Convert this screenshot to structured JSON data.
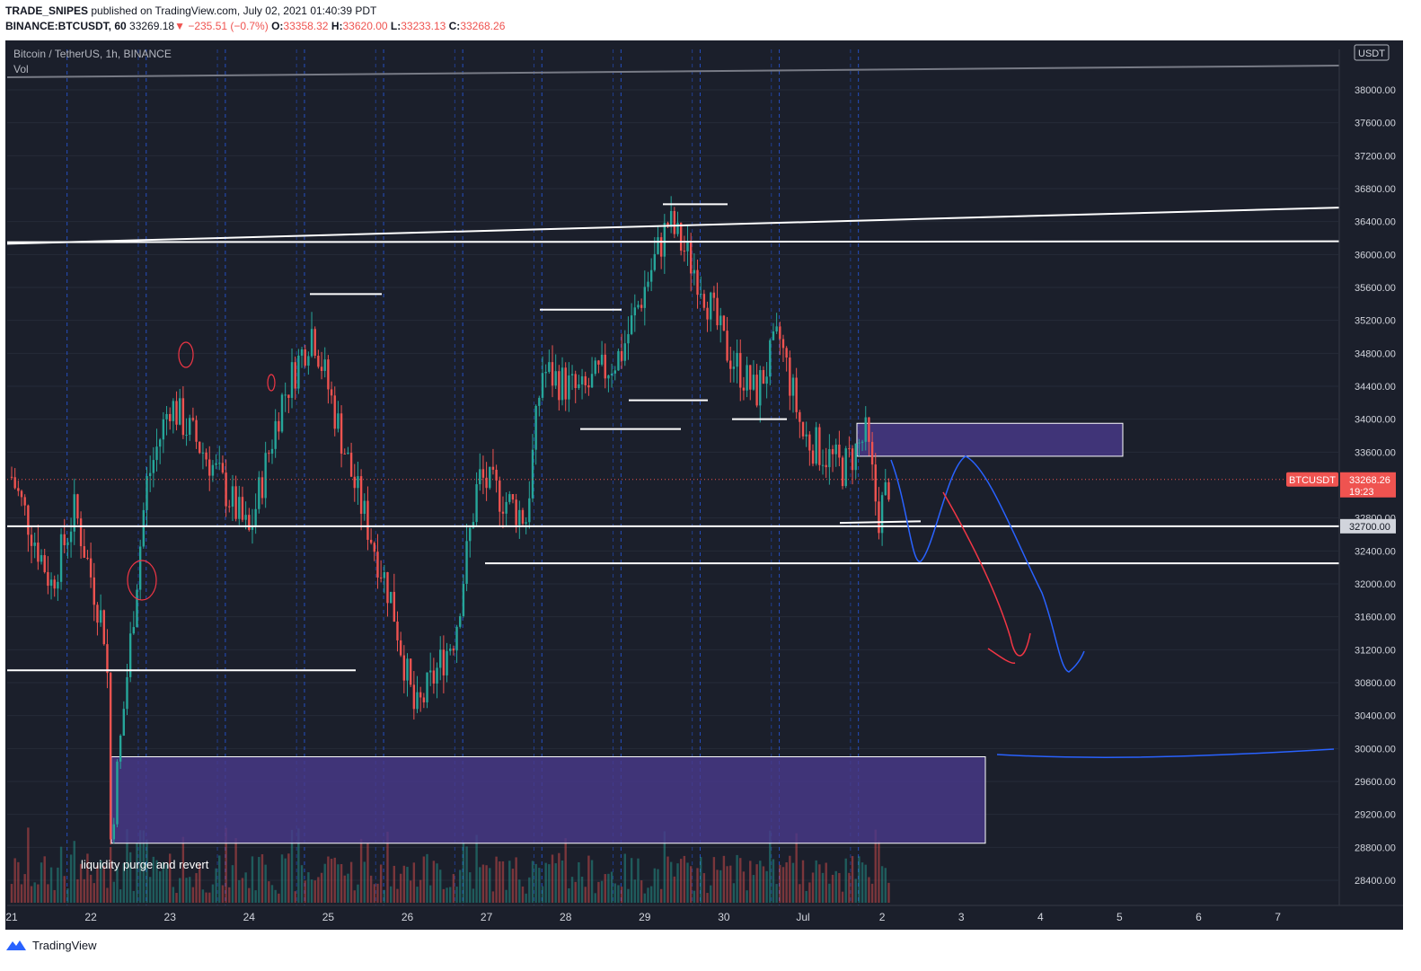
{
  "header": {
    "publisher": "TRADE_SNIPES",
    "published_text": "published on TradingView.com, July 02, 2021 01:40:39 PDT",
    "symbol": "BINANCE:BTCUSDT, 60",
    "last": "33269.18",
    "change": "−235.51 (−0.7%)",
    "open_label": "O:",
    "open": "33358.32",
    "high_label": "H:",
    "high": "33620.00",
    "low_label": "L:",
    "low": "33233.13",
    "close_label": "C:",
    "close": "33268.26"
  },
  "legend": {
    "title": "Bitcoin / TetherUS, 1h, BINANCE",
    "volume": "Vol"
  },
  "footer": {
    "brand": "TradingView"
  },
  "colors": {
    "background": "#1b1f2b",
    "up": "#26a69a",
    "down": "#ef5350",
    "zone": "#4a3a8c",
    "drawing_blue": "#2962ff",
    "drawing_red": "#f23645",
    "level": "#ffffff"
  },
  "chart_data": {
    "type": "candlestick",
    "symbol": "BTCUSDT",
    "interval": "1h",
    "exchange": "BINANCE",
    "currency_label": "USDT",
    "x_tick_labels": [
      "21",
      "22",
      "23",
      "24",
      "25",
      "26",
      "27",
      "28",
      "29",
      "30",
      "Jul",
      "2",
      "3",
      "4",
      "5",
      "6",
      "7"
    ],
    "y_tick_labels": [
      "28400.00",
      "28800.00",
      "29200.00",
      "29600.00",
      "30000.00",
      "30400.00",
      "30800.00",
      "31200.00",
      "31600.00",
      "32000.00",
      "32400.00",
      "32800.00",
      "33600.00",
      "34000.00",
      "34400.00",
      "34800.00",
      "35200.00",
      "35600.00",
      "36000.00",
      "36400.00",
      "36800.00",
      "37200.00",
      "37600.00",
      "38000.00"
    ],
    "ylim": [
      28200,
      38400
    ],
    "price_badge": {
      "label": "BTCUSDT",
      "value": "33268.26",
      "countdown": "19:23"
    },
    "level_badge": "32700.00",
    "price_path_approx": [
      {
        "day": 21.0,
        "price": 33300
      },
      {
        "day": 21.5,
        "price": 32000
      },
      {
        "day": 21.8,
        "price": 32900
      },
      {
        "day": 22.2,
        "price": 31300
      },
      {
        "day": 22.25,
        "price": 28900
      },
      {
        "day": 22.7,
        "price": 33200
      },
      {
        "day": 23.0,
        "price": 34200
      },
      {
        "day": 23.5,
        "price": 33500
      },
      {
        "day": 24.0,
        "price": 32600
      },
      {
        "day": 24.4,
        "price": 34200
      },
      {
        "day": 24.8,
        "price": 35100
      },
      {
        "day": 25.3,
        "price": 33300
      },
      {
        "day": 25.8,
        "price": 31800
      },
      {
        "day": 26.1,
        "price": 30400
      },
      {
        "day": 26.6,
        "price": 31400
      },
      {
        "day": 26.9,
        "price": 33300
      },
      {
        "day": 27.5,
        "price": 32800
      },
      {
        "day": 27.7,
        "price": 34600
      },
      {
        "day": 28.2,
        "price": 34300
      },
      {
        "day": 28.7,
        "price": 34800
      },
      {
        "day": 29.3,
        "price": 36400
      },
      {
        "day": 29.7,
        "price": 35700
      },
      {
        "day": 30.0,
        "price": 34900
      },
      {
        "day": 30.4,
        "price": 34300
      },
      {
        "day": 30.7,
        "price": 35000
      },
      {
        "day": 31.0,
        "price": 33800
      },
      {
        "day": 31.5,
        "price": 33400
      },
      {
        "day": 31.8,
        "price": 33800
      },
      {
        "day": 31.95,
        "price": 32800
      },
      {
        "day": 32.1,
        "price": 33268
      }
    ],
    "horizontal_levels": [
      32700,
      32250,
      31000
    ],
    "annotations": [
      "liquidity purge and revert"
    ],
    "zones": [
      {
        "from_price": 33550,
        "to_price": 33950
      },
      {
        "from_price": 28850,
        "to_price": 29900
      }
    ]
  }
}
